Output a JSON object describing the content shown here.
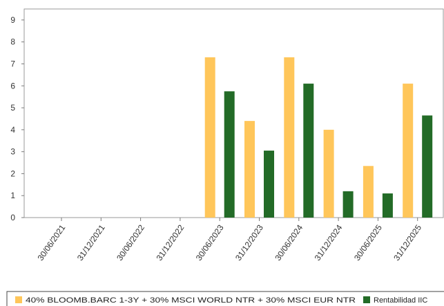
{
  "chart_data": {
    "type": "bar",
    "categories": [
      "30/06/2021",
      "31/12/2021",
      "30/06/2022",
      "31/12/2022",
      "30/06/2023",
      "31/12/2023",
      "30/06/2024",
      "31/12/2024",
      "30/06/2025",
      "31/12/2025"
    ],
    "series": [
      {
        "name": "40% BLOOMB.BARC 1-3Y + 30% MSCI WORLD NTR + 30% MSCI EUR NTR",
        "color": "#ffc65a",
        "values": [
          null,
          null,
          null,
          null,
          7.3,
          4.4,
          7.3,
          4.0,
          2.35,
          6.1
        ]
      },
      {
        "name": "Rentabilidad IIC",
        "color": "#236b27",
        "values": [
          null,
          null,
          null,
          null,
          5.75,
          3.05,
          6.1,
          1.2,
          1.1,
          4.65
        ]
      }
    ],
    "y_ticks": [
      "0",
      "1",
      "2",
      "3",
      "4",
      "5",
      "6",
      "7",
      "8",
      "9"
    ],
    "ylim": [
      0,
      9.5
    ],
    "grid": false,
    "legend_position": "bottom",
    "title": "",
    "xlabel": "",
    "ylabel": ""
  }
}
